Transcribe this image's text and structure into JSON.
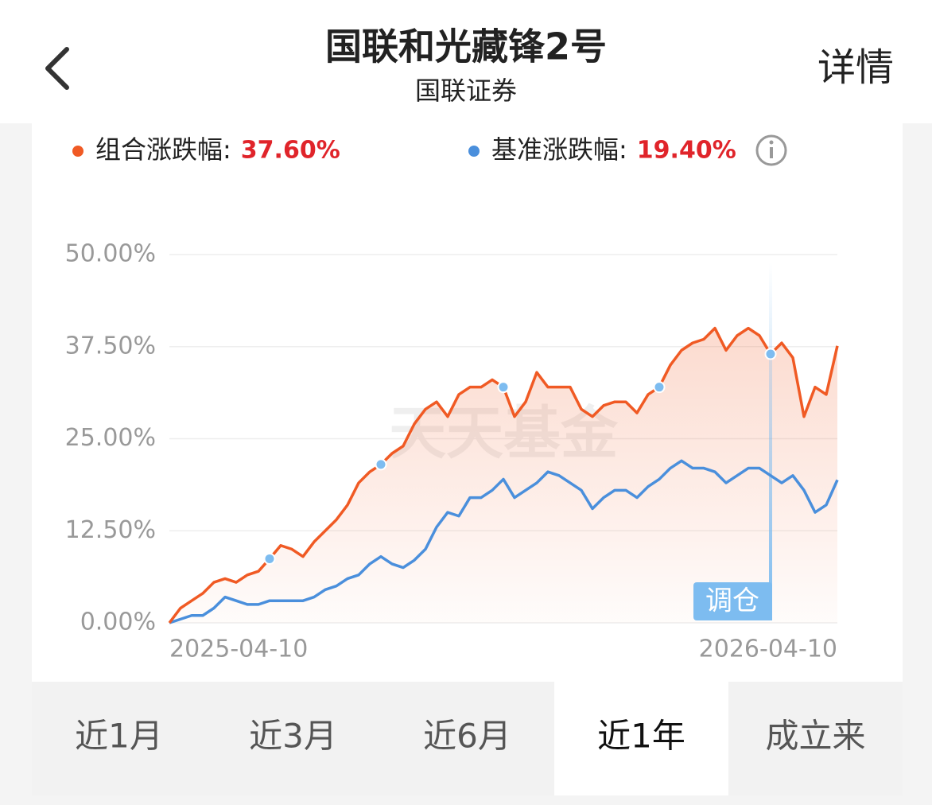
{
  "header": {
    "title": "国联和光藏锋2号",
    "subtitle": "国联证券",
    "detail": "详情"
  },
  "chart_data": {
    "type": "line",
    "watermark": "天天基金",
    "categories": [
      "2025-04-10",
      null,
      null,
      null,
      null,
      null,
      null,
      null,
      null,
      null,
      null,
      null,
      null,
      null,
      null,
      null,
      null,
      null,
      null,
      null,
      null,
      null,
      null,
      null,
      null,
      null,
      null,
      null,
      null,
      null,
      null,
      null,
      null,
      null,
      null,
      null,
      null,
      null,
      null,
      null,
      null,
      null,
      null,
      null,
      null,
      null,
      null,
      null,
      null,
      null,
      null,
      null,
      null,
      null,
      null,
      null,
      null,
      null,
      null,
      null,
      "2026-04-10"
    ],
    "series": [
      {
        "name": "组合涨跌幅:",
        "summary": "37.60%",
        "color": "#f05a24",
        "values": [
          0,
          2,
          3,
          4,
          5.5,
          6,
          5.5,
          6.5,
          7,
          8.7,
          10.5,
          10,
          9,
          11,
          12.5,
          14,
          16,
          19,
          20.5,
          21.5,
          23,
          24,
          27,
          29,
          30,
          28,
          31,
          32,
          32,
          33,
          32,
          28,
          30,
          34,
          32,
          32,
          32,
          29,
          28,
          29.5,
          30,
          30,
          28.5,
          31,
          32,
          35,
          37,
          38,
          38.5,
          40,
          37,
          39,
          40,
          39,
          36.5,
          38,
          36,
          28,
          32,
          31,
          37.6
        ]
      },
      {
        "name": "基准涨跌幅:",
        "summary": "19.40%",
        "color": "#4a8fdc",
        "values": [
          0,
          0.5,
          1,
          1,
          2,
          3.5,
          3,
          2.5,
          2.5,
          3,
          3,
          3,
          3,
          3.5,
          4.5,
          5,
          6,
          6.5,
          8,
          9,
          8,
          7.5,
          8.5,
          10,
          13,
          15,
          14.5,
          17,
          17,
          18,
          19.5,
          17,
          18,
          19,
          20.5,
          20,
          19,
          18,
          15.5,
          17,
          18,
          18,
          17,
          18.5,
          19.5,
          21,
          22,
          21,
          21,
          20.5,
          19,
          20,
          21,
          21,
          20,
          19,
          20,
          18,
          15,
          16,
          19.4
        ]
      }
    ],
    "rebalance_markers": [
      9,
      19,
      30,
      44,
      54
    ],
    "annotation": "调仓",
    "ylim": [
      0,
      50
    ],
    "yticks": [
      {
        "value": 0,
        "label": "0.00%"
      },
      {
        "value": 12.5,
        "label": "12.50%"
      },
      {
        "value": 25,
        "label": "25.00%"
      },
      {
        "value": 37.5,
        "label": "37.50%"
      },
      {
        "value": 50,
        "label": "50.00%"
      }
    ],
    "grid": true
  },
  "tabs": [
    "近1月",
    "近3月",
    "近6月",
    "近1年",
    "成立来"
  ],
  "active_tab": 3
}
